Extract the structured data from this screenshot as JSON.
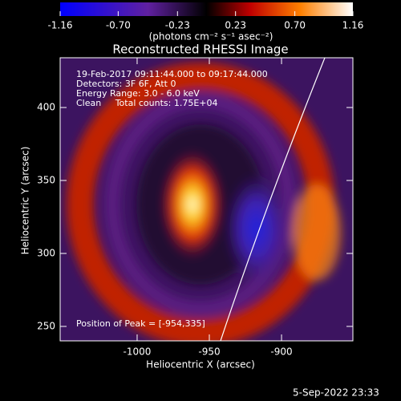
{
  "chart_data": {
    "type": "image",
    "title": "Reconstructed RHESSI Image",
    "colorbar": {
      "lim": [
        -1.16,
        1.16
      ],
      "ticks": [
        -1.16,
        {
          "value": -0.7,
          "label": "-0.70"
        },
        -0.23,
        0.23,
        {
          "value": 0.7,
          "label": "0.70"
        },
        1.16
      ],
      "label": "(photons cm⁻² s⁻¹ asec⁻²)"
    },
    "xlabel": "Heliocentric X (arcsec)",
    "ylabel": "Heliocentric Y (arcsec)",
    "xlim": [
      -1053.3,
      -850.6
    ],
    "xticks": [
      -1000,
      -950,
      -900
    ],
    "ylim": [
      240.1,
      434.1
    ],
    "yticks": [
      250,
      300,
      350,
      400
    ],
    "annotations": [
      "19-Feb-2017 09:11:44.000 to 09:17:44.000",
      "Detectors: 3F 6F, Att 0",
      "Energy Range: 3.0 - 6.0 keV",
      "Clean     Total counts: 1.75E+04"
    ],
    "peak_label": "Position of Peak = [-954,335]",
    "timestamp": "5-Sep-2022 23:33"
  }
}
